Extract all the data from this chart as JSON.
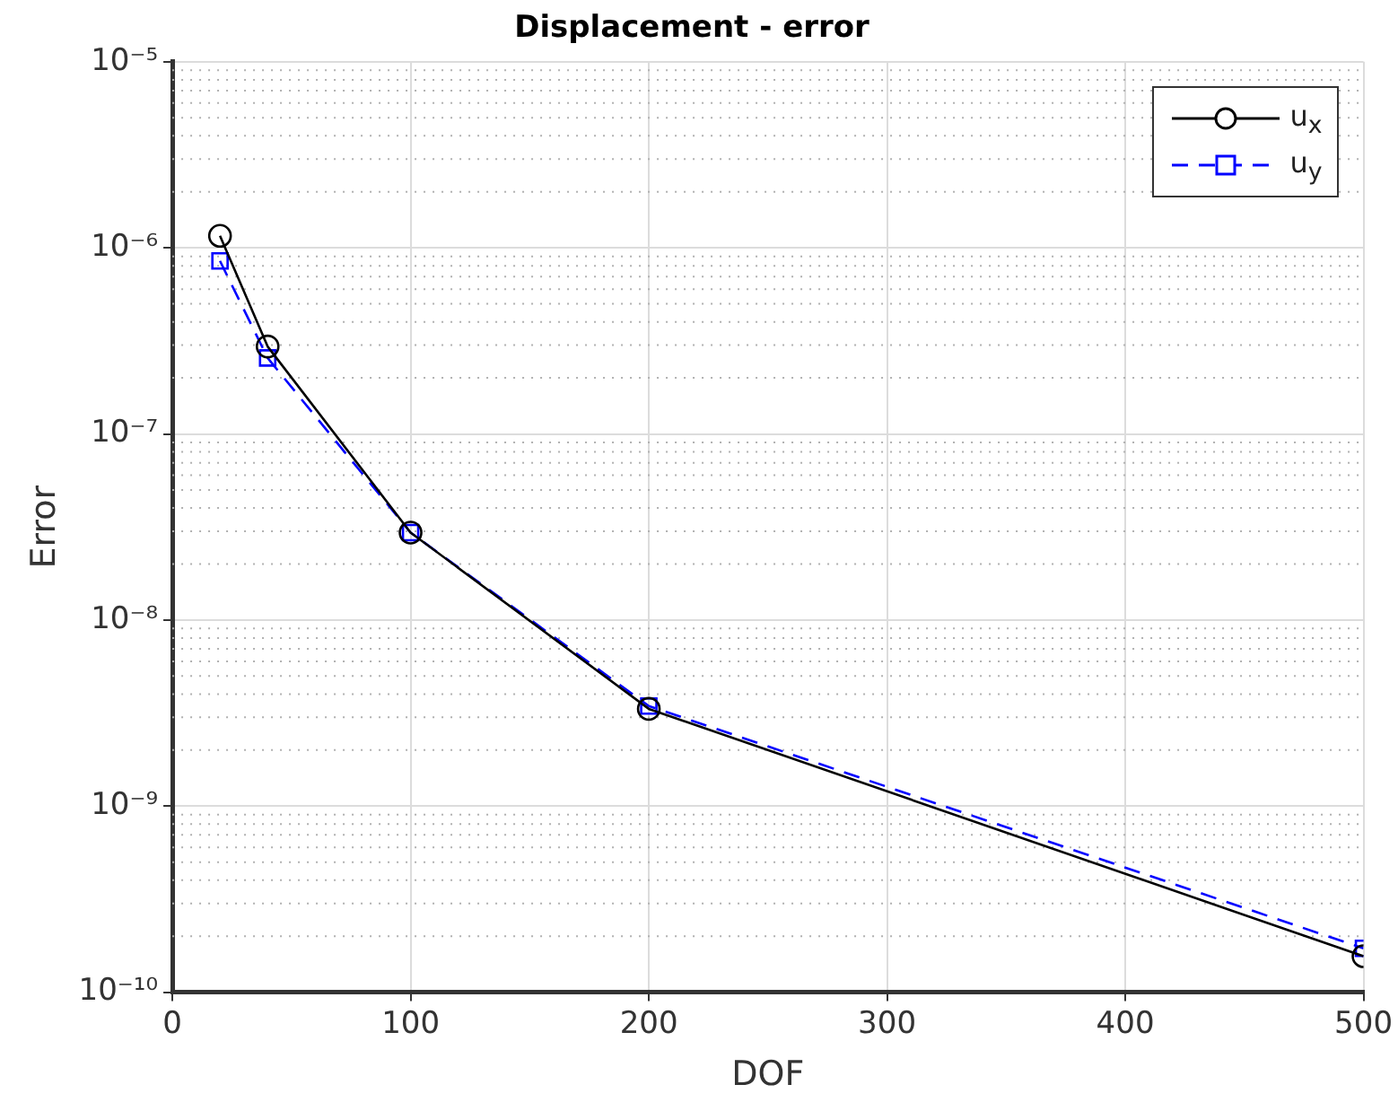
{
  "chart_data": {
    "type": "line",
    "title": "Displacement - error",
    "xlabel": "DOF",
    "ylabel": "Error",
    "x": [
      20,
      40,
      100,
      200,
      500
    ],
    "series": [
      {
        "name": "u$_{x}$",
        "color": "#000000",
        "marker": "circle",
        "line_style": "solid",
        "values": [
          1.16e-06,
          2.95e-07,
          2.95e-08,
          3.33e-09,
          1.56e-10
        ]
      },
      {
        "name": "u$_{y}$",
        "color": "#0000ff",
        "marker": "square",
        "line_style": "dashed",
        "values": [
          8.5e-07,
          2.56e-07,
          2.95e-08,
          3.45e-09,
          1.72e-10
        ]
      }
    ],
    "log": "y",
    "grid": true,
    "legend": "top right",
    "xlim": [
      0,
      500
    ],
    "xticks": [
      0,
      100,
      200,
      300,
      400,
      500
    ],
    "ylim": [
      1e-10,
      1e-05
    ],
    "yticks": [
      {
        "value": 1e-10,
        "label": "10⁻¹⁰"
      },
      {
        "value": 1e-09,
        "label": "10⁻⁹"
      },
      {
        "value": 1e-08,
        "label": "10⁻⁸"
      },
      {
        "value": 1e-07,
        "label": "10⁻⁷"
      },
      {
        "value": 1e-06,
        "label": "10⁻⁶"
      },
      {
        "value": 1e-05,
        "label": "10⁻⁵"
      }
    ]
  }
}
